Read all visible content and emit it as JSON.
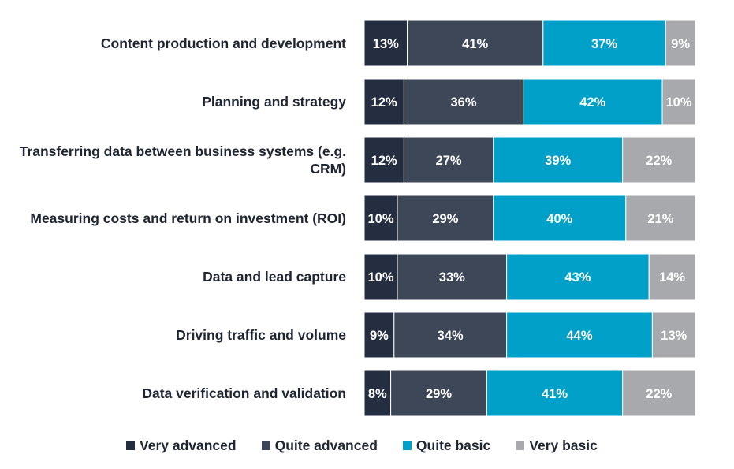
{
  "chart_data": {
    "type": "bar",
    "orientation": "horizontal",
    "stacked": true,
    "categories": [
      "Content production and development",
      "Planning and strategy",
      "Transferring data between business systems (e.g. CRM)",
      "Measuring costs and return on investment (ROI)",
      "Data and lead capture",
      "Driving traffic and volume",
      "Data verification and validation"
    ],
    "series": [
      {
        "name": "Very advanced",
        "color": "#252d40",
        "values": [
          13,
          12,
          12,
          10,
          10,
          9,
          8
        ]
      },
      {
        "name": "Quite advanced",
        "color": "#3d4758",
        "values": [
          41,
          36,
          27,
          29,
          33,
          34,
          29
        ]
      },
      {
        "name": "Quite basic",
        "color": "#00a0c8",
        "values": [
          37,
          42,
          39,
          40,
          43,
          44,
          41
        ]
      },
      {
        "name": "Very basic",
        "color": "#a7a9ac",
        "values": [
          9,
          10,
          22,
          21,
          14,
          13,
          22
        ]
      }
    ],
    "data_labels": true,
    "label_suffix": "%",
    "legend_position": "bottom",
    "grid": false
  }
}
